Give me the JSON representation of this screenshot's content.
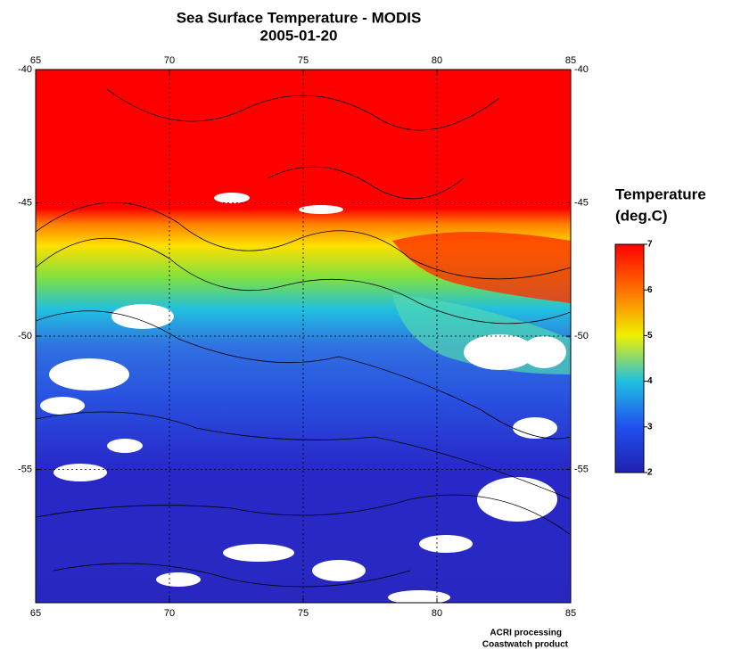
{
  "chart_data": {
    "type": "map",
    "title": "Sea Surface Temperature - MODIS",
    "subtitle": "2005-01-20",
    "xlim": [
      65,
      85
    ],
    "ylim": [
      -60,
      -40
    ],
    "xticks": [
      65,
      70,
      75,
      80,
      85
    ],
    "yticks": [
      -40,
      -45,
      -50,
      -55
    ],
    "grid": true,
    "colorbar": {
      "title": [
        "Temperature",
        "(deg.C)"
      ],
      "lim": [
        2,
        7
      ],
      "ticks": [
        2,
        3,
        4,
        5,
        6,
        7
      ]
    },
    "credits": [
      "ACRI processing",
      "Coastwatch product"
    ]
  }
}
